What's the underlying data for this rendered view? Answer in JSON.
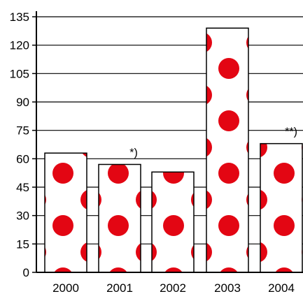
{
  "chart_data": {
    "type": "bar",
    "title": "",
    "xlabel": "",
    "ylabel": "",
    "categories": [
      "2000",
      "2001",
      "2002",
      "2003",
      "2004"
    ],
    "values": [
      63,
      57,
      53,
      129,
      68
    ],
    "ylim": [
      0,
      135
    ],
    "yticks": [
      "0",
      "15",
      "30",
      "45",
      "60",
      "75",
      "90",
      "105",
      "120",
      "135"
    ],
    "grid": "horizontal",
    "annotations": [
      {
        "category": "2001",
        "text": "*)"
      },
      {
        "category": "2004",
        "text": "**)"
      }
    ],
    "colors": {
      "bar_fill": "#ffffff",
      "dot": "#e30613",
      "bar_stroke": "#000000",
      "grid": "#000000"
    }
  }
}
